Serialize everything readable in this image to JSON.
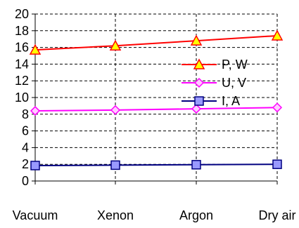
{
  "chart_data": {
    "type": "line",
    "categories": [
      "Vacuum",
      "Xenon",
      "Argon",
      "Dry air"
    ],
    "ylim": [
      0,
      20
    ],
    "yticks": [
      0,
      2,
      4,
      6,
      8,
      10,
      12,
      14,
      16,
      18,
      20
    ],
    "grid": true,
    "legend_position": "right",
    "series": [
      {
        "name": "P, W",
        "values": [
          15.7,
          16.2,
          16.8,
          17.4
        ],
        "color": "#ff0000",
        "marker": "triangle"
      },
      {
        "name": "U, V",
        "values": [
          8.4,
          8.5,
          8.65,
          8.8
        ],
        "color": "#ff00ff",
        "marker": "diamond"
      },
      {
        "name": "I, A",
        "values": [
          1.85,
          1.9,
          1.95,
          2.0
        ],
        "color": "#000080",
        "marker": "square"
      }
    ]
  }
}
